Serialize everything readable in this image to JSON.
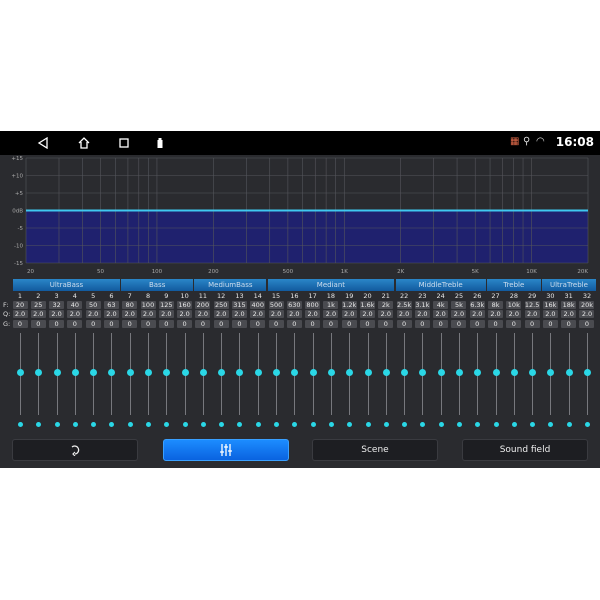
{
  "status_bar": {
    "time": "16:08",
    "icons": [
      "back-icon",
      "home-icon",
      "recents-icon",
      "usb-icon",
      "cast-off-icon",
      "location-icon",
      "hotspot-icon"
    ]
  },
  "chart_data": {
    "type": "line",
    "x_scale": "log",
    "xlim": [
      20,
      20000
    ],
    "ylim": [
      -15,
      15
    ],
    "y_ticks": [
      "+15",
      "+10",
      "+5",
      "0dB",
      "-5",
      "-10",
      "-15"
    ],
    "x_ticks": [
      "20",
      "50",
      "100",
      "200",
      "500",
      "1K",
      "2K",
      "5K",
      "10K",
      "20K"
    ],
    "x_tick_values": [
      20,
      50,
      100,
      200,
      500,
      1000,
      2000,
      5000,
      10000,
      20000
    ],
    "series": [
      {
        "x": [
          20,
          20000
        ],
        "y": [
          0,
          0
        ]
      }
    ],
    "colors": {
      "line": "#3fc8f0",
      "fill": "#1f216e",
      "grid": "#55565c"
    },
    "grid": true
  },
  "groups": [
    {
      "label": "UltraBass",
      "from": 1,
      "to": 6
    },
    {
      "label": "Bass",
      "from": 7,
      "to": 10
    },
    {
      "label": "MediumBass",
      "from": 11,
      "to": 14
    },
    {
      "label": "Mediant",
      "from": 15,
      "to": 21
    },
    {
      "label": "MiddleTreble",
      "from": 22,
      "to": 26
    },
    {
      "label": "Treble",
      "from": 27,
      "to": 29
    },
    {
      "label": "UltraTreble",
      "from": 30,
      "to": 32
    }
  ],
  "row_labels": {
    "f": "F:",
    "q": "Q:",
    "g": "G:"
  },
  "bands": {
    "numbers": [
      "1",
      "2",
      "3",
      "4",
      "5",
      "6",
      "7",
      "8",
      "9",
      "10",
      "11",
      "12",
      "13",
      "14",
      "15",
      "16",
      "17",
      "18",
      "19",
      "20",
      "21",
      "22",
      "23",
      "24",
      "25",
      "26",
      "27",
      "28",
      "29",
      "30",
      "31",
      "32"
    ],
    "freq": [
      "20",
      "25",
      "32",
      "40",
      "50",
      "63",
      "80",
      "100",
      "125",
      "160",
      "200",
      "250",
      "315",
      "400",
      "500",
      "630",
      "800",
      "1k",
      "1.2k",
      "1.6k",
      "2k",
      "2.5k",
      "3.1k",
      "4k",
      "5k",
      "6.3k",
      "8k",
      "10k",
      "12.5",
      "16k",
      "18k",
      "20k"
    ],
    "q": [
      "2.0",
      "2.0",
      "2.0",
      "2.0",
      "2.0",
      "2.0",
      "2.0",
      "2.0",
      "2.0",
      "2.0",
      "2.0",
      "2.0",
      "2.0",
      "2.0",
      "2.0",
      "2.0",
      "2.0",
      "2.0",
      "2.0",
      "2.0",
      "2.0",
      "2.0",
      "2.0",
      "2.0",
      "2.0",
      "2.0",
      "2.0",
      "2.0",
      "2.0",
      "2.0",
      "2.0",
      "2.0"
    ],
    "gain": [
      "0",
      "0",
      "0",
      "0",
      "0",
      "0",
      "0",
      "0",
      "0",
      "0",
      "0",
      "0",
      "0",
      "0",
      "0",
      "0",
      "0",
      "0",
      "0",
      "0",
      "0",
      "0",
      "0",
      "0",
      "0",
      "0",
      "0",
      "0",
      "0",
      "0",
      "0",
      "0"
    ],
    "slider_level_db": 0
  },
  "buttons": {
    "reset_icon": "reset-icon",
    "eq_icon": "equalizer-icon",
    "scene": "Scene",
    "sound_field": "Sound field",
    "active": "eq"
  },
  "colors": {
    "accent": "#2ad7e6",
    "active_button": "#1478f0",
    "group_header": "#1a6fb5"
  }
}
